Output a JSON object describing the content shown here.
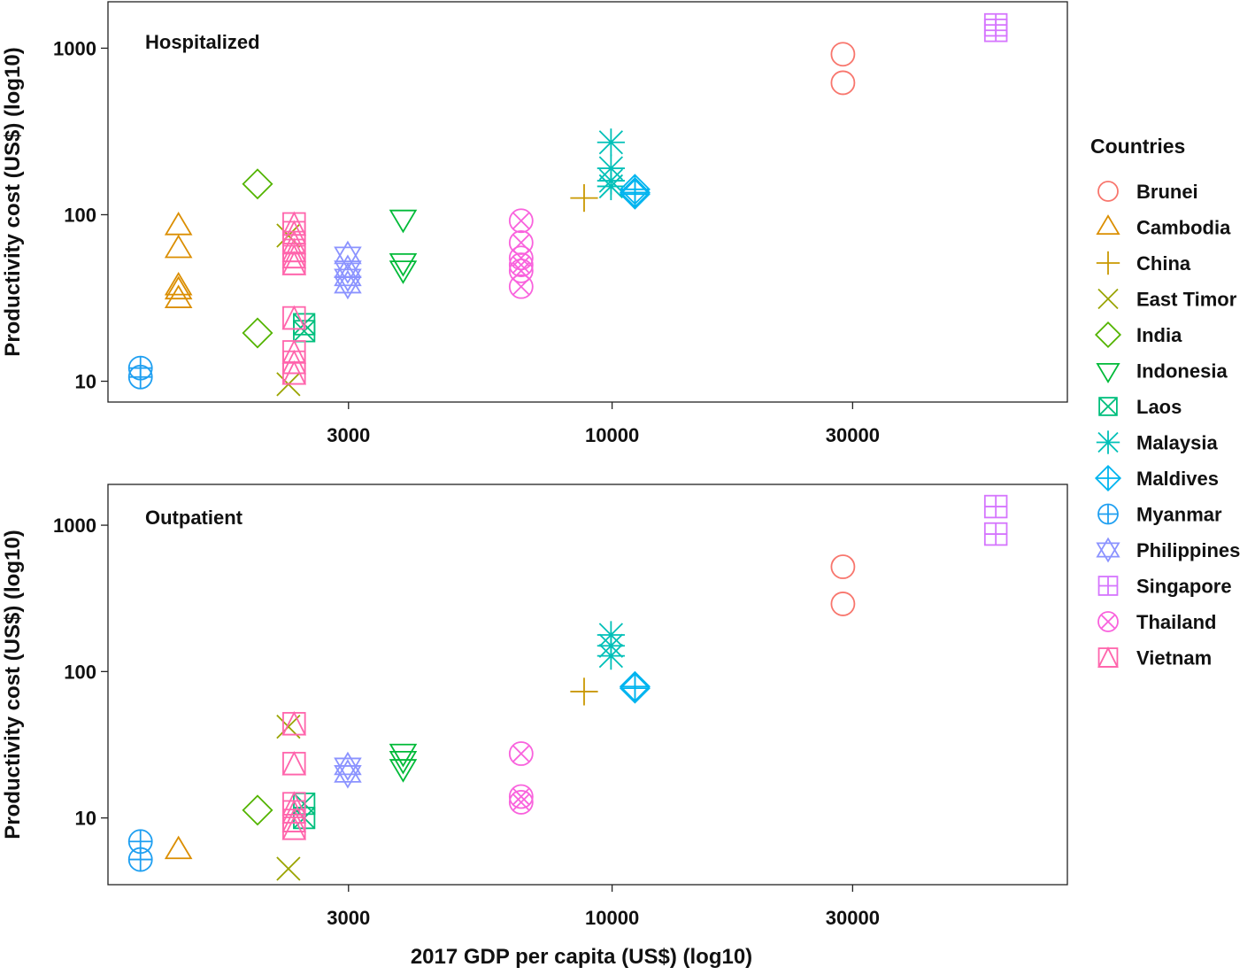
{
  "chart_data": [
    {
      "type": "scatter",
      "title": "Hospitalized",
      "xlabel": "",
      "ylabel": "Productivity cost (US$) (log10)",
      "x_scale": "log10",
      "y_scale": "log10",
      "xlim": [
        1000,
        80000
      ],
      "ylim": [
        7.5,
        1900
      ],
      "x_ticks": [
        "3000",
        "10000",
        "30000"
      ],
      "y_ticks": [
        "10",
        "100",
        "1000"
      ],
      "grid": false,
      "series": [
        {
          "name": "Brunei",
          "points": [
            [
              28700,
              920
            ],
            [
              28700,
              620
            ]
          ]
        },
        {
          "name": "Cambodia",
          "points": [
            [
              1380,
              85
            ],
            [
              1380,
              62
            ],
            [
              1380,
              37
            ],
            [
              1380,
              35
            ],
            [
              1380,
              31
            ]
          ]
        },
        {
          "name": "China",
          "points": [
            [
              8800,
              126
            ]
          ]
        },
        {
          "name": "East Timor",
          "points": [
            [
              2280,
              75
            ],
            [
              2280,
              9.6
            ]
          ]
        },
        {
          "name": "India",
          "points": [
            [
              1980,
              153
            ],
            [
              1980,
              19.5
            ]
          ]
        },
        {
          "name": "Indonesia",
          "points": [
            [
              3850,
              95
            ],
            [
              3850,
              52
            ],
            [
              3850,
              47
            ]
          ]
        },
        {
          "name": "Laos",
          "points": [
            [
              2450,
              22
            ],
            [
              2450,
              20
            ]
          ]
        },
        {
          "name": "Malaysia",
          "points": [
            [
              9950,
              272
            ],
            [
              9950,
              190
            ],
            [
              9950,
              160
            ],
            [
              9950,
              148
            ]
          ]
        },
        {
          "name": "Maldives",
          "points": [
            [
              11100,
              142
            ],
            [
              11100,
              136
            ],
            [
              11100,
              133
            ]
          ]
        },
        {
          "name": "Myanmar",
          "points": [
            [
              1160,
              12
            ],
            [
              1160,
              10.6
            ]
          ]
        },
        {
          "name": "Philippines",
          "points": [
            [
              2990,
              57
            ],
            [
              2990,
              47
            ],
            [
              2990,
              42
            ],
            [
              2990,
              38
            ]
          ]
        },
        {
          "name": "Singapore",
          "points": [
            [
              57700,
              1380
            ],
            [
              57700,
              1280
            ]
          ]
        },
        {
          "name": "Thailand",
          "points": [
            [
              6600,
              92
            ],
            [
              6600,
              68
            ],
            [
              6600,
              55
            ],
            [
              6600,
              50
            ],
            [
              6600,
              46
            ],
            [
              6600,
              37
            ]
          ]
        },
        {
          "name": "Vietnam",
          "points": [
            [
              2340,
              88
            ],
            [
              2340,
              78
            ],
            [
              2340,
              68
            ],
            [
              2340,
              61
            ],
            [
              2340,
              56
            ],
            [
              2340,
              51
            ],
            [
              2340,
              24
            ],
            [
              2340,
              15
            ],
            [
              2340,
              13
            ],
            [
              2340,
              11.2
            ]
          ]
        }
      ]
    },
    {
      "type": "scatter",
      "title": "Outpatient",
      "xlabel": "2017 GDP per capita (US$) (log10)",
      "ylabel": "Productivity cost (US$) (log10)",
      "x_scale": "log10",
      "y_scale": "log10",
      "xlim": [
        1000,
        80000
      ],
      "ylim": [
        3.5,
        1900
      ],
      "x_ticks": [
        "3000",
        "10000",
        "30000"
      ],
      "y_ticks": [
        "10",
        "100",
        "1000"
      ],
      "grid": false,
      "series": [
        {
          "name": "Brunei",
          "points": [
            [
              28700,
              520
            ],
            [
              28700,
              290
            ]
          ]
        },
        {
          "name": "Cambodia",
          "points": [
            [
              1380,
              6.0
            ]
          ]
        },
        {
          "name": "China",
          "points": [
            [
              8800,
              73
            ]
          ]
        },
        {
          "name": "East Timor",
          "points": [
            [
              2280,
              42
            ],
            [
              2280,
              4.5
            ]
          ]
        },
        {
          "name": "India",
          "points": [
            [
              1980,
              11.3
            ]
          ]
        },
        {
          "name": "Indonesia",
          "points": [
            [
              3850,
              28
            ],
            [
              3850,
              25
            ],
            [
              3850,
              22
            ]
          ]
        },
        {
          "name": "Laos",
          "points": [
            [
              2450,
              12.5
            ],
            [
              2450,
              10
            ]
          ]
        },
        {
          "name": "Malaysia",
          "points": [
            [
              9950,
              178
            ],
            [
              9950,
              150
            ],
            [
              9950,
              128
            ]
          ]
        },
        {
          "name": "Maldives",
          "points": [
            [
              11100,
              79
            ],
            [
              11100,
              77
            ]
          ]
        },
        {
          "name": "Myanmar",
          "points": [
            [
              1160,
              6.9
            ],
            [
              1160,
              5.2
            ]
          ]
        },
        {
          "name": "Philippines",
          "points": [
            [
              2990,
              22.5
            ],
            [
              2990,
              20
            ]
          ]
        },
        {
          "name": "Singapore",
          "points": [
            [
              57700,
              1340
            ],
            [
              57700,
              870
            ]
          ]
        },
        {
          "name": "Thailand",
          "points": [
            [
              6600,
              27.5
            ],
            [
              6600,
              14
            ],
            [
              6600,
              12.8
            ]
          ]
        },
        {
          "name": "Vietnam",
          "points": [
            [
              2340,
              44
            ],
            [
              2340,
              23.5
            ],
            [
              2340,
              12.5
            ],
            [
              2340,
              11
            ],
            [
              2340,
              9.6
            ],
            [
              2340,
              8.5
            ]
          ]
        }
      ]
    }
  ],
  "legend": {
    "title": "Countries",
    "placement": "right",
    "items": [
      {
        "name": "Brunei",
        "color": "#F8766D",
        "shape": "circle-icon"
      },
      {
        "name": "Cambodia",
        "color": "#DB8E00",
        "shape": "triangle-icon"
      },
      {
        "name": "China",
        "color": "#C99800",
        "shape": "plus-icon"
      },
      {
        "name": "East Timor",
        "color": "#9AA400",
        "shape": "cross-icon"
      },
      {
        "name": "India",
        "color": "#53B400",
        "shape": "diamond-icon"
      },
      {
        "name": "Indonesia",
        "color": "#00BA38",
        "shape": "down-triangle-icon"
      },
      {
        "name": "Laos",
        "color": "#00BF7D",
        "shape": "boxed-x-icon"
      },
      {
        "name": "Malaysia",
        "color": "#00C0B8",
        "shape": "asterisk-icon"
      },
      {
        "name": "Maldives",
        "color": "#00B4EF",
        "shape": "diamond-plus-icon"
      },
      {
        "name": "Myanmar",
        "color": "#1E9FF1",
        "shape": "circle-plus-icon"
      },
      {
        "name": "Philippines",
        "color": "#8B93FF",
        "shape": "star-of-david-icon"
      },
      {
        "name": "Singapore",
        "color": "#D575FE",
        "shape": "square-plus-icon"
      },
      {
        "name": "Thailand",
        "color": "#F962DD",
        "shape": "circle-x-icon"
      },
      {
        "name": "Vietnam",
        "color": "#FF65AC",
        "shape": "square-triangle-icon"
      }
    ]
  }
}
